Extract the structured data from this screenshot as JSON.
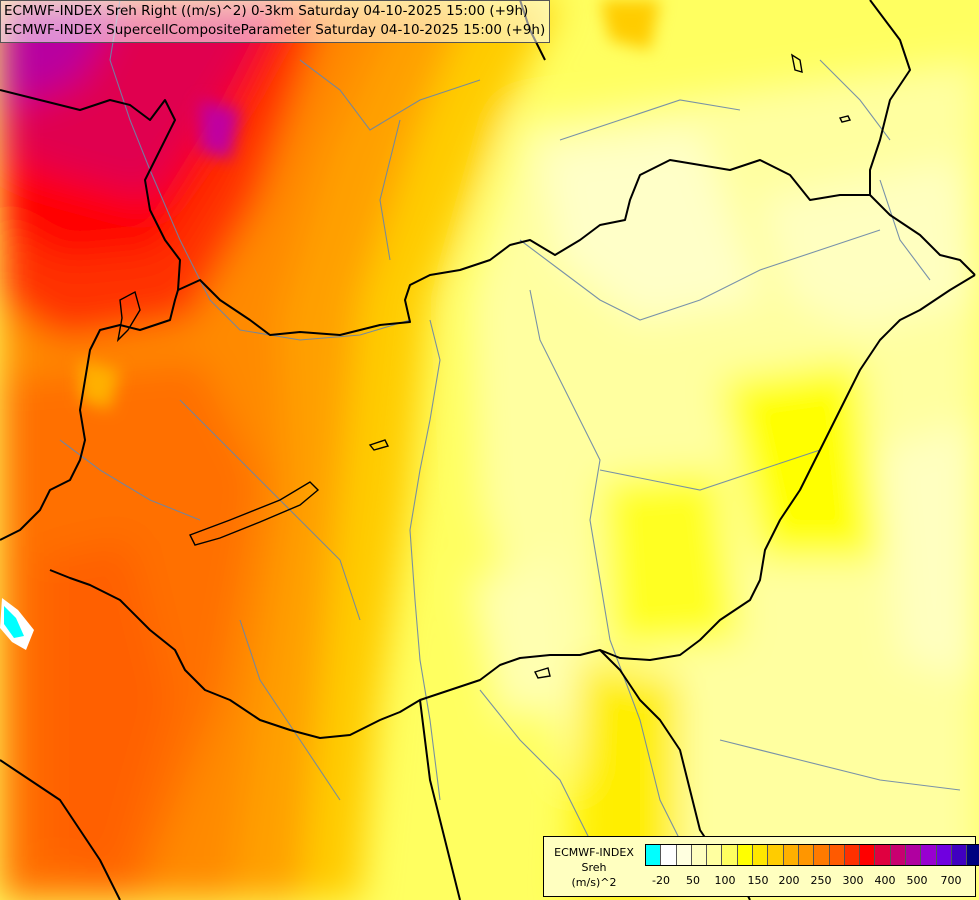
{
  "header": {
    "line1": "ECMWF-INDEX Sreh Right ((m/s)^2) 0-3km Saturday 04-10-2025 15:00 (+9h)",
    "line2": "ECMWF-INDEX SupercellCompositeParameter Saturday 04-10-2025 15:00 (+9h)"
  },
  "legend": {
    "title_line1": "ECMWF-INDEX",
    "title_line2": "Sreh",
    "title_line3": "(m/s)^2",
    "colors": [
      "#00ffff",
      "#ffffff",
      "#ffffe0",
      "#ffffc0",
      "#ffffa0",
      "#ffff60",
      "#ffff00",
      "#ffe600",
      "#ffcc00",
      "#ffb000",
      "#ff9600",
      "#ff7a00",
      "#ff5a00",
      "#ff3000",
      "#ff0000",
      "#e00040",
      "#c80070",
      "#b000a0",
      "#9800d0",
      "#7000e0",
      "#4000c0",
      "#000080"
    ],
    "ticks": [
      "-20",
      "50",
      "100",
      "150",
      "200",
      "250",
      "300",
      "400",
      "500",
      "700"
    ]
  },
  "map_style": {
    "border_color": "#000000",
    "river_color": "#6080a0",
    "background_color": "#ffff80"
  }
}
